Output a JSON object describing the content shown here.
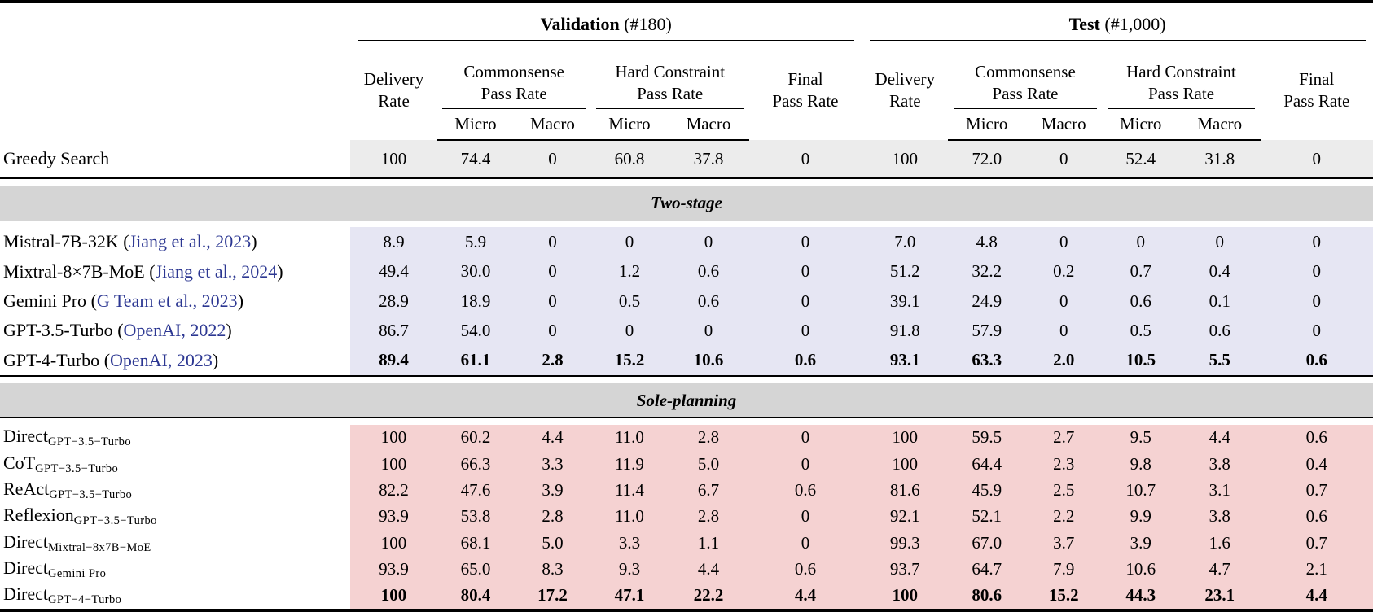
{
  "colors": {
    "link": "#2c3792",
    "section_band_bg": "#d5d5d5",
    "greedy_bg": "#ececec",
    "two_stage_bg": "#e6e6f3",
    "sole_planning_bg": "#f5d2d2"
  },
  "header": {
    "groups": [
      {
        "title": "Validation",
        "count": " (#180)"
      },
      {
        "title": "Test",
        "count": " (#1,000)"
      }
    ],
    "delivery_line1": "Delivery",
    "delivery_line2": "Rate",
    "commonsense_line1": "Commonsense",
    "commonsense_line2": "Pass Rate",
    "hard_line1": "Hard Constraint",
    "hard_line2": "Pass Rate",
    "final_line1": "Final",
    "final_line2": "Pass Rate",
    "micro": "Micro",
    "macro": "Macro"
  },
  "table": {
    "sections": [
      {
        "title": null,
        "bg": "#ececec",
        "rows": [
          {
            "name": "Greedy Search",
            "values": [
              "100",
              "74.4",
              "0",
              "60.8",
              "37.8",
              "0",
              "100",
              "72.0",
              "0",
              "52.4",
              "31.8",
              "0"
            ]
          }
        ]
      },
      {
        "title": "Two-stage",
        "bg": "#e6e6f3",
        "rows": [
          {
            "name": "Mistral-7B-32K",
            "citation": "Jiang et al., 2023",
            "values": [
              "8.9",
              "5.9",
              "0",
              "0",
              "0",
              "0",
              "7.0",
              "4.8",
              "0",
              "0",
              "0",
              "0"
            ]
          },
          {
            "name": "Mixtral-8×7B-MoE",
            "citation": "Jiang et al., 2024",
            "values": [
              "49.4",
              "30.0",
              "0",
              "1.2",
              "0.6",
              "0",
              "51.2",
              "32.2",
              "0.2",
              "0.7",
              "0.4",
              "0"
            ]
          },
          {
            "name": "Gemini Pro",
            "citation": "G Team et al., 2023",
            "values": [
              "28.9",
              "18.9",
              "0",
              "0.5",
              "0.6",
              "0",
              "39.1",
              "24.9",
              "0",
              "0.6",
              "0.1",
              "0"
            ]
          },
          {
            "name": "GPT-3.5-Turbo",
            "citation": "OpenAI, 2022",
            "values": [
              "86.7",
              "54.0",
              "0",
              "0",
              "0",
              "0",
              "91.8",
              "57.9",
              "0",
              "0.5",
              "0.6",
              "0"
            ]
          },
          {
            "name": "GPT-4-Turbo",
            "citation": "OpenAI, 2023",
            "bold": true,
            "values": [
              "89.4",
              "61.1",
              "2.8",
              "15.2",
              "10.6",
              "0.6",
              "93.1",
              "63.3",
              "2.0",
              "10.5",
              "5.5",
              "0.6"
            ]
          }
        ]
      },
      {
        "title": "Sole-planning",
        "bg": "#f5d2d2",
        "rows": [
          {
            "name": "Direct",
            "sub": "GPT−3.5−Turbo",
            "values": [
              "100",
              "60.2",
              "4.4",
              "11.0",
              "2.8",
              "0",
              "100",
              "59.5",
              "2.7",
              "9.5",
              "4.4",
              "0.6"
            ]
          },
          {
            "name": "CoT",
            "sub": "GPT−3.5−Turbo",
            "values": [
              "100",
              "66.3",
              "3.3",
              "11.9",
              "5.0",
              "0",
              "100",
              "64.4",
              "2.3",
              "9.8",
              "3.8",
              "0.4"
            ]
          },
          {
            "name": "ReAct",
            "sub": "GPT−3.5−Turbo",
            "values": [
              "82.2",
              "47.6",
              "3.9",
              "11.4",
              "6.7",
              "0.6",
              "81.6",
              "45.9",
              "2.5",
              "10.7",
              "3.1",
              "0.7"
            ]
          },
          {
            "name": "Reflexion",
            "sub": "GPT−3.5−Turbo",
            "values": [
              "93.9",
              "53.8",
              "2.8",
              "11.0",
              "2.8",
              "0",
              "92.1",
              "52.1",
              "2.2",
              "9.9",
              "3.8",
              "0.6"
            ]
          },
          {
            "name": "Direct",
            "sub": "Mixtral−8x7B−MoE",
            "values": [
              "100",
              "68.1",
              "5.0",
              "3.3",
              "1.1",
              "0",
              "99.3",
              "67.0",
              "3.7",
              "3.9",
              "1.6",
              "0.7"
            ]
          },
          {
            "name": "Direct",
            "sub": "Gemini Pro",
            "values": [
              "93.9",
              "65.0",
              "8.3",
              "9.3",
              "4.4",
              "0.6",
              "93.7",
              "64.7",
              "7.9",
              "10.6",
              "4.7",
              "2.1"
            ]
          },
          {
            "name": "Direct",
            "sub": "GPT−4−Turbo",
            "bold": true,
            "values": [
              "100",
              "80.4",
              "17.2",
              "47.1",
              "22.2",
              "4.4",
              "100",
              "80.6",
              "15.2",
              "44.3",
              "23.1",
              "4.4"
            ]
          }
        ]
      }
    ]
  }
}
